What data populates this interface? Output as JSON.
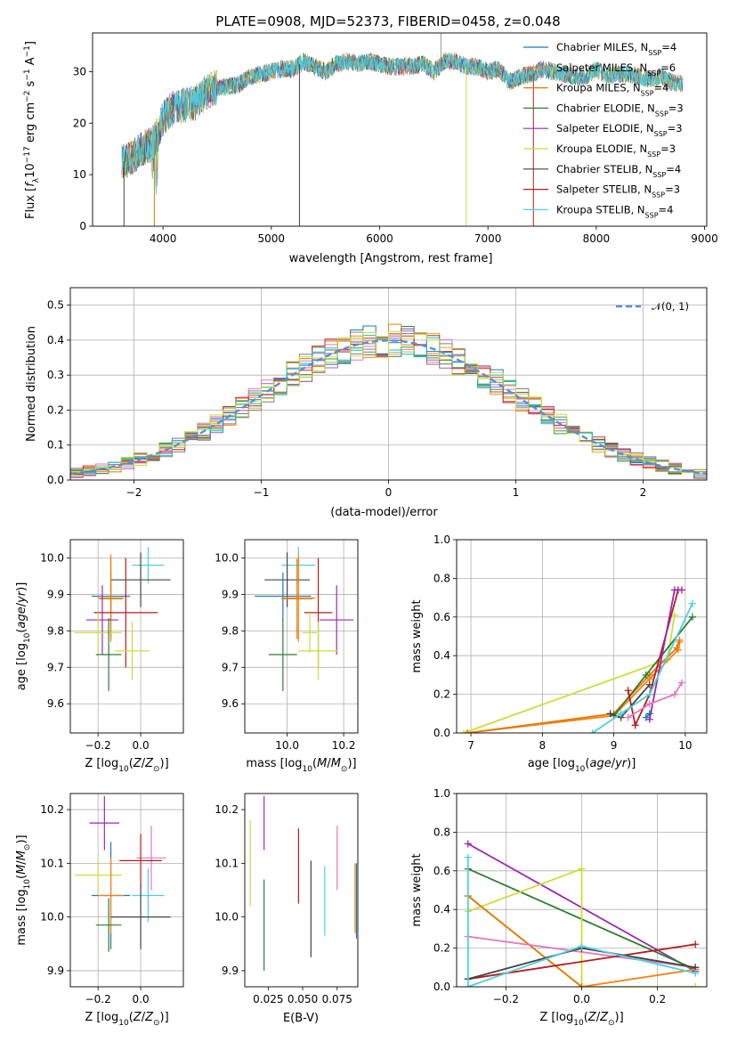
{
  "figure": {
    "title": "PLATE=0908, MJD=52373, FIBERID=0458, z=0.048"
  },
  "colors": {
    "chabrier_miles": "#1f77b4",
    "salpeter_miles": "#ff7f0e",
    "kroupa_miles": "#e07b00",
    "chabrier_elodie": "#2e7d32",
    "salpeter_elodie": "#9c27b0",
    "kroupa_elodie": "#cddc39",
    "chabrier_stelib": "#444444",
    "salpeter_stelib": "#b71c1c",
    "kroupa_stelib": "#4dd0e1",
    "hist_series": [
      "#1f77b4",
      "#ff7f0e",
      "#8c564b",
      "#2ca02c",
      "#9467bd",
      "#e377c2",
      "#7f7f7f",
      "#bcbd22",
      "#d62728",
      "#17becf",
      "#cddc39"
    ],
    "gaussian": "#5b8dd9"
  },
  "chart_data": [
    {
      "id": "spectrum",
      "type": "line",
      "title": "PLATE=0908, MJD=52373, FIBERID=0458, z=0.048",
      "xlabel": "wavelength [Angstrom, rest frame]",
      "ylabel": "Flux [f_λ10^-17 erg cm^-2 s^-1 A^-1]",
      "xlim": [
        3350,
        9020
      ],
      "ylim": [
        0,
        37.5
      ],
      "xticks": [
        4000,
        5000,
        6000,
        7000,
        8000,
        9000
      ],
      "yticks": [
        0,
        10,
        20,
        30
      ],
      "grid": false,
      "legend_position": "top-right",
      "legend": [
        {
          "base": "Chabrier MILES, N",
          "sub": "SSP",
          "tail": "=4",
          "color_key": "chabrier_miles"
        },
        {
          "base": "Salpeter MILES, N",
          "sub": "SSP",
          "tail": "=6",
          "color_key": "salpeter_miles"
        },
        {
          "base": "Kroupa MILES, N",
          "sub": "SSP",
          "tail": "=4",
          "color_key": "kroupa_miles"
        },
        {
          "base": "Chabrier ELODIE, N",
          "sub": "SSP",
          "tail": "=3",
          "color_key": "chabrier_elodie"
        },
        {
          "base": "Salpeter ELODIE, N",
          "sub": "SSP",
          "tail": "=3",
          "color_key": "salpeter_elodie"
        },
        {
          "base": "Kroupa ELODIE, N",
          "sub": "SSP",
          "tail": "=3",
          "color_key": "kroupa_elodie"
        },
        {
          "base": "Chabrier STELIB, N",
          "sub": "SSP",
          "tail": "=4",
          "color_key": "chabrier_stelib"
        },
        {
          "base": "Salpeter STELIB, N",
          "sub": "SSP",
          "tail": "=3",
          "color_key": "salpeter_stelib"
        },
        {
          "base": "Kroupa STELIB, N",
          "sub": "SSP",
          "tail": "=4",
          "color_key": "kroupa_stelib"
        }
      ],
      "envelope": {
        "x": [
          3620,
          3700,
          3800,
          3900,
          3960,
          4000,
          4100,
          4200,
          4300,
          4400,
          4500,
          4600,
          4700,
          4800,
          4900,
          5000,
          5100,
          5200,
          5300,
          5400,
          5500,
          5600,
          5700,
          5800,
          5900,
          6000,
          6100,
          6200,
          6300,
          6400,
          6500,
          6600,
          6700,
          6800,
          6900,
          7000,
          7100,
          7200,
          7300,
          7400,
          7500,
          7600,
          7700,
          7800,
          7900,
          8000,
          8100,
          8200,
          8300,
          8400,
          8500,
          8600,
          8700,
          8800
        ],
        "y": [
          12.5,
          13,
          15,
          16,
          18,
          21,
          23,
          23.5,
          24,
          26,
          27,
          27,
          27.5,
          29,
          29.5,
          30,
          30.5,
          30.5,
          32,
          31,
          30,
          31.5,
          32,
          31.5,
          32,
          31.5,
          31,
          31,
          31,
          31.5,
          30,
          32,
          32,
          31,
          31,
          30,
          30.5,
          28,
          29,
          29.5,
          30.5,
          30,
          29.5,
          29,
          29,
          30.5,
          29,
          29.5,
          29.5,
          29,
          28.5,
          29,
          28,
          27.5
        ]
      }
    },
    {
      "id": "residuals",
      "type": "line",
      "xlabel": "(data-model)/error",
      "ylabel": "Normed distribution",
      "xlim": [
        -2.5,
        2.5
      ],
      "ylim": [
        0,
        0.55
      ],
      "xticks": [
        -2,
        -1,
        0,
        1,
        2
      ],
      "yticks": [
        0.0,
        0.1,
        0.2,
        0.3,
        0.4,
        0.5
      ],
      "grid": true,
      "legend_position": "top-right",
      "legend": [
        {
          "name": "𝒩(0, 1)",
          "style": "dashed"
        }
      ],
      "bin_width": 0.1
    },
    {
      "id": "age_vs_Z",
      "type": "scatter",
      "xlabel": "Z [log10(Z/Z⊙)]",
      "ylabel": "age  [log10(age/yr)]",
      "xlim": [
        -0.33,
        0.2
      ],
      "ylim": [
        9.52,
        10.05
      ],
      "xticks": [
        -0.2,
        0.0
      ],
      "yticks": [
        9.6,
        9.7,
        9.8,
        9.9,
        10.0
      ],
      "grid": true,
      "points": [
        {
          "x": 0.035,
          "y": 9.98,
          "xerr": 0.075,
          "yerr": 0.05,
          "color_key": "kroupa_stelib"
        },
        {
          "x": 0.0,
          "y": 9.94,
          "xerr": 0.14,
          "yerr": 0.075,
          "color_key": "chabrier_stelib"
        },
        {
          "x": -0.14,
          "y": 9.895,
          "xerr": 0.09,
          "yerr": 0.065,
          "color_key": "chabrier_miles"
        },
        {
          "x": -0.14,
          "y": 9.89,
          "xerr": 0.06,
          "yerr": 0.12,
          "color_key": "salpeter_miles"
        },
        {
          "x": -0.14,
          "y": 9.888,
          "xerr": 0.055,
          "yerr": 0.11,
          "color_key": "kroupa_miles"
        },
        {
          "x": -0.07,
          "y": 9.85,
          "xerr": 0.15,
          "yerr": 0.15,
          "color_key": "salpeter_stelib"
        },
        {
          "x": -0.18,
          "y": 9.83,
          "xerr": 0.075,
          "yerr": 0.095,
          "color_key": "salpeter_elodie"
        },
        {
          "x": -0.2,
          "y": 9.795,
          "xerr": 0.11,
          "yerr": 0.055,
          "color_key": "kroupa_elodie"
        },
        {
          "x": -0.04,
          "y": 9.745,
          "xerr": 0.08,
          "yerr": 0.08,
          "color_key": "kroupa_elodie"
        },
        {
          "x": -0.15,
          "y": 9.735,
          "xerr": 0.06,
          "yerr": 0.1,
          "color_key": "chabrier_elodie"
        }
      ]
    },
    {
      "id": "age_vs_mass",
      "type": "scatter",
      "xlabel": "mass [log10(M/M⊙)]",
      "ylabel": "",
      "xlim": [
        9.85,
        10.25
      ],
      "ylim": [
        9.52,
        10.05
      ],
      "xticks": [
        10.0,
        10.2
      ],
      "yticks": [
        9.6,
        9.7,
        9.8,
        9.9,
        10.0
      ],
      "grid": true,
      "points": [
        {
          "x": 10.04,
          "y": 9.98,
          "xerr": 0.06,
          "yerr": 0.05,
          "color_key": "kroupa_stelib"
        },
        {
          "x": 10.0,
          "y": 9.94,
          "xerr": 0.08,
          "yerr": 0.075,
          "color_key": "chabrier_stelib"
        },
        {
          "x": 9.985,
          "y": 9.895,
          "xerr": 0.1,
          "yerr": 0.065,
          "color_key": "chabrier_miles"
        },
        {
          "x": 10.04,
          "y": 9.89,
          "xerr": 0.06,
          "yerr": 0.12,
          "color_key": "salpeter_miles"
        },
        {
          "x": 10.035,
          "y": 9.888,
          "xerr": 0.055,
          "yerr": 0.11,
          "color_key": "kroupa_miles"
        },
        {
          "x": 10.11,
          "y": 9.85,
          "xerr": 0.05,
          "yerr": 0.15,
          "color_key": "salpeter_stelib"
        },
        {
          "x": 10.175,
          "y": 9.83,
          "xerr": 0.06,
          "yerr": 0.095,
          "color_key": "salpeter_elodie"
        },
        {
          "x": 10.08,
          "y": 9.795,
          "xerr": 0.025,
          "yerr": 0.055,
          "color_key": "kroupa_elodie"
        },
        {
          "x": 10.11,
          "y": 9.745,
          "xerr": 0.07,
          "yerr": 0.08,
          "color_key": "kroupa_elodie"
        },
        {
          "x": 9.985,
          "y": 9.735,
          "xerr": 0.05,
          "yerr": 0.1,
          "color_key": "chabrier_elodie"
        }
      ]
    },
    {
      "id": "massweight_vs_age",
      "type": "line",
      "xlabel": "age  [log10(age/yr)]",
      "ylabel": "mass weight",
      "xlim": [
        6.8,
        10.3
      ],
      "ylim": [
        0.0,
        1.0
      ],
      "xticks": [
        7,
        8,
        9,
        10
      ],
      "yticks": [
        0.0,
        0.2,
        0.4,
        0.6,
        0.8,
        1.0
      ],
      "grid": true,
      "series": [
        {
          "color_key": "kroupa_elodie",
          "x": [
            6.9,
            9.75,
            9.85
          ],
          "y": [
            0.0,
            0.38,
            0.61
          ]
        },
        {
          "color_key": "salpeter_miles",
          "x": [
            6.95,
            9.0,
            9.5,
            9.9,
            9.92
          ],
          "y": [
            0.0,
            0.09,
            0.28,
            0.43,
            0.47
          ]
        },
        {
          "color_key": "kroupa_miles",
          "x": [
            6.95,
            9.0,
            9.5,
            9.88,
            9.92
          ],
          "y": [
            0.0,
            0.1,
            0.3,
            0.44,
            0.48
          ]
        },
        {
          "color_key": "chabrier_elodie",
          "x": [
            9.0,
            9.45,
            10.1
          ],
          "y": [
            0.09,
            0.3,
            0.6
          ]
        },
        {
          "color_key": "salpeter_stelib",
          "x": [
            9.2,
            9.3,
            9.5,
            9.9
          ],
          "y": [
            0.22,
            0.04,
            0.2,
            0.74
          ]
        },
        {
          "color_key": "salpeter_elodie",
          "x": [
            9.5,
            9.85,
            9.95
          ],
          "y": [
            0.07,
            0.74,
            0.74
          ]
        },
        {
          "color_key": "chabrier_stelib",
          "x": [
            8.95,
            9.1,
            9.5
          ],
          "y": [
            0.1,
            0.08,
            0.25
          ]
        },
        {
          "color_key": "kroupa_stelib",
          "x": [
            8.7,
            9.1,
            9.5,
            10.1
          ],
          "y": [
            0.0,
            0.1,
            0.2,
            0.67
          ]
        },
        {
          "color_key": "chabrier_miles",
          "x": [
            9.45,
            9.5
          ],
          "y": [
            0.08,
            0.1
          ]
        },
        {
          "color_key": "hist_e377c2",
          "x": [
            9.2,
            9.5,
            9.85,
            9.95
          ],
          "y": [
            0.08,
            0.15,
            0.2,
            0.26
          ]
        }
      ]
    },
    {
      "id": "mass_vs_Z",
      "type": "scatter",
      "xlabel": "Z [log10(Z/Z⊙)]",
      "ylabel": "mass [log10(M/M⊙)]",
      "xlim": [
        -0.33,
        0.2
      ],
      "ylim": [
        9.87,
        10.23
      ],
      "xticks": [
        -0.2,
        0.0
      ],
      "yticks": [
        9.9,
        10.0,
        10.1,
        10.2
      ],
      "grid": true,
      "points": [
        {
          "x": -0.17,
          "y": 10.175,
          "xerr": 0.07,
          "yerr": 0.05,
          "color_key": "salpeter_elodie"
        },
        {
          "x": 0.05,
          "y": 10.11,
          "xerr": 0.07,
          "yerr": 0.06,
          "color_key": "hist_e377c2"
        },
        {
          "x": 0.0,
          "y": 10.105,
          "xerr": 0.1,
          "yerr": 0.05,
          "color_key": "salpeter_stelib"
        },
        {
          "x": -0.2,
          "y": 10.078,
          "xerr": 0.11,
          "yerr": 0.03,
          "color_key": "kroupa_elodie"
        },
        {
          "x": -0.14,
          "y": 10.04,
          "xerr": 0.09,
          "yerr": 0.1,
          "color_key": "chabrier_miles"
        },
        {
          "x": -0.14,
          "y": 10.04,
          "xerr": 0.06,
          "yerr": 0.07,
          "color_key": "salpeter_miles"
        },
        {
          "x": 0.035,
          "y": 10.04,
          "xerr": 0.075,
          "yerr": 0.05,
          "color_key": "kroupa_stelib"
        },
        {
          "x": 0.0,
          "y": 10.0,
          "xerr": 0.14,
          "yerr": 0.06,
          "color_key": "chabrier_stelib"
        },
        {
          "x": -0.15,
          "y": 9.985,
          "xerr": 0.06,
          "yerr": 0.05,
          "color_key": "chabrier_elodie"
        }
      ]
    },
    {
      "id": "mass_vs_ebv",
      "type": "scatter",
      "xlabel": "E(B-V)",
      "ylabel": "",
      "xlim": [
        0.008,
        0.09
      ],
      "ylim": [
        9.87,
        10.23
      ],
      "xticks": [
        0.025,
        0.05,
        0.075
      ],
      "xtick_labels": [
        "0.025",
        "0.050",
        "0.075"
      ],
      "yticks": [
        9.9,
        10.0,
        10.1,
        10.2
      ],
      "grid": false,
      "points": [
        {
          "x": 0.012,
          "y": 10.1,
          "yerr": 0.08,
          "color_key": "kroupa_elodie"
        },
        {
          "x": 0.022,
          "y": 10.175,
          "yerr": 0.05,
          "color_key": "salpeter_elodie"
        },
        {
          "x": 0.022,
          "y": 9.985,
          "yerr": 0.085,
          "color_key": "chabrier_elodie"
        },
        {
          "x": 0.047,
          "y": 10.095,
          "yerr": 0.07,
          "color_key": "salpeter_stelib"
        },
        {
          "x": 0.056,
          "y": 10.015,
          "yerr": 0.09,
          "color_key": "chabrier_stelib"
        },
        {
          "x": 0.066,
          "y": 10.03,
          "yerr": 0.065,
          "color_key": "kroupa_stelib"
        },
        {
          "x": 0.075,
          "y": 10.11,
          "yerr": 0.06,
          "color_key": "hist_e377c2"
        },
        {
          "x": 0.088,
          "y": 10.035,
          "yerr": 0.065,
          "color_key": "salpeter_miles"
        },
        {
          "x": 0.089,
          "y": 10.03,
          "yerr": 0.07,
          "color_key": "chabrier_miles"
        }
      ]
    },
    {
      "id": "massweight_vs_Z",
      "type": "line",
      "xlabel": "Z [log10(Z/Z⊙)]",
      "ylabel": "mass weight",
      "xlim": [
        -0.33,
        0.33
      ],
      "ylim": [
        0.0,
        1.0
      ],
      "xticks": [
        -0.2,
        0.0,
        0.2
      ],
      "yticks": [
        0.0,
        0.2,
        0.4,
        0.6,
        0.8,
        1.0
      ],
      "grid": true,
      "series": [
        {
          "color_key": "salpeter_elodie",
          "x": [
            -0.3,
            0.3
          ],
          "y": [
            0.74,
            0.08
          ]
        },
        {
          "color_key": "chabrier_elodie",
          "x": [
            -0.3,
            0.3
          ],
          "y": [
            0.61,
            0.09
          ]
        },
        {
          "color_key": "kroupa_elodie",
          "x": [
            -0.3,
            0.0,
            0.0,
            0.3
          ],
          "y": [
            0.39,
            0.61,
            0.0,
            0.0
          ]
        },
        {
          "color_key": "salpeter_miles",
          "x": [
            -0.3,
            0.0,
            0.3
          ],
          "y": [
            0.47,
            0.0,
            0.09
          ]
        },
        {
          "color_key": "kroupa_miles",
          "x": [
            -0.3,
            0.0
          ],
          "y": [
            0.47,
            0.0
          ]
        },
        {
          "color_key": "hist_e377c2",
          "x": [
            -0.3,
            0.3
          ],
          "y": [
            0.26,
            0.1
          ]
        },
        {
          "color_key": "salpeter_stelib",
          "x": [
            -0.3,
            0.3
          ],
          "y": [
            0.04,
            0.22
          ]
        },
        {
          "color_key": "chabrier_stelib",
          "x": [
            -0.3,
            0.0,
            0.3
          ],
          "y": [
            0.04,
            0.2,
            0.1
          ]
        },
        {
          "color_key": "kroupa_stelib",
          "x": [
            -0.3,
            -0.3,
            0.0,
            0.3
          ],
          "y": [
            0.67,
            0.0,
            0.21,
            0.07
          ]
        }
      ]
    }
  ]
}
